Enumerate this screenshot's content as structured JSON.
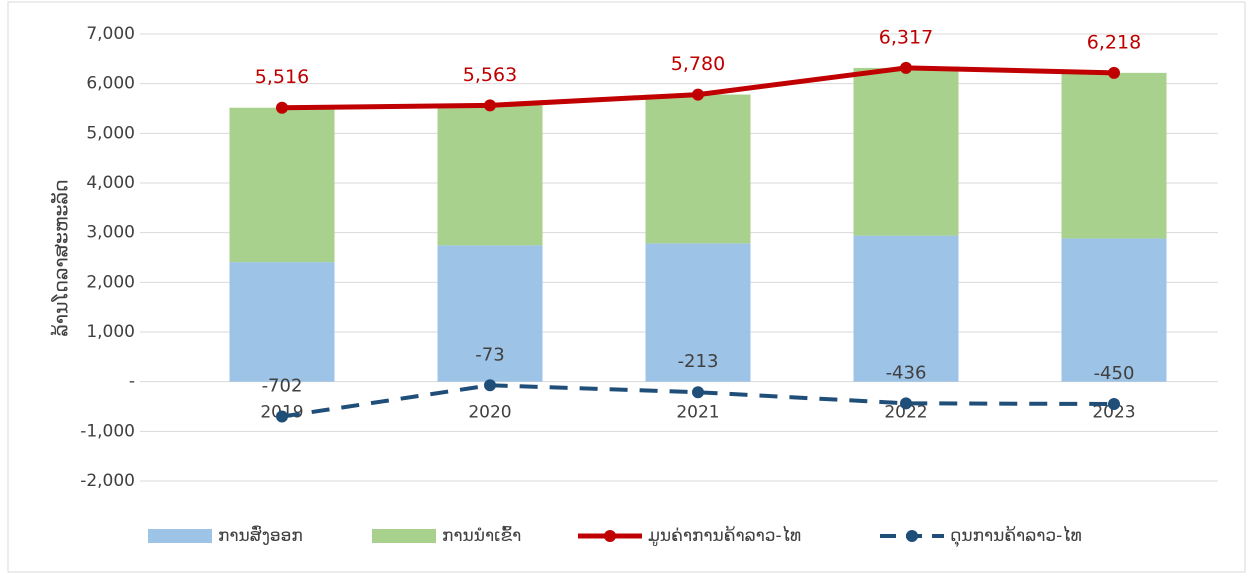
{
  "chart_data": {
    "type": "bar",
    "stacked": true,
    "ylabel": "ລ້ານໂດລາສະຫະລັດ",
    "categories": [
      "2019",
      "2020",
      "2021",
      "2022",
      "2023"
    ],
    "series": [
      {
        "name": "ການສົ່ງອອກ",
        "type": "bar",
        "color": "#9dc3e6",
        "values": [
          2407,
          2745,
          2784,
          2941,
          2884
        ]
      },
      {
        "name": "ການນຳເຂົ້າ",
        "type": "bar",
        "color": "#a9d18e",
        "values": [
          3109,
          2818,
          2997,
          3376,
          3334
        ]
      },
      {
        "name": "ມູນຄ່າການຄ້າລາວ-ໄທ",
        "type": "line",
        "color": "#c00000",
        "values": [
          5516,
          5563,
          5780,
          6317,
          6218
        ],
        "value_labels": [
          "5,516",
          "5,563",
          "5,780",
          "6,317",
          "6,218"
        ]
      },
      {
        "name": "ດຸນການຄ້າລາວ-ໄທ",
        "type": "line",
        "dashed": true,
        "color": "#1f4e79",
        "values": [
          -702,
          -73,
          -213,
          -436,
          -450
        ]
      }
    ],
    "ylim": [
      -2000,
      7000
    ],
    "yticks": [
      {
        "value": -2000,
        "label": "-2,000"
      },
      {
        "value": -1000,
        "label": "-1,000"
      },
      {
        "value": 0,
        "label": "-"
      },
      {
        "value": 1000,
        "label": "1,000"
      },
      {
        "value": 2000,
        "label": "2,000"
      },
      {
        "value": 3000,
        "label": "3,000"
      },
      {
        "value": 4000,
        "label": "4,000"
      },
      {
        "value": 5000,
        "label": "5,000"
      },
      {
        "value": 6000,
        "label": "6,000"
      },
      {
        "value": 7000,
        "label": "7,000"
      }
    ],
    "grid": true,
    "legend": "bottom"
  }
}
